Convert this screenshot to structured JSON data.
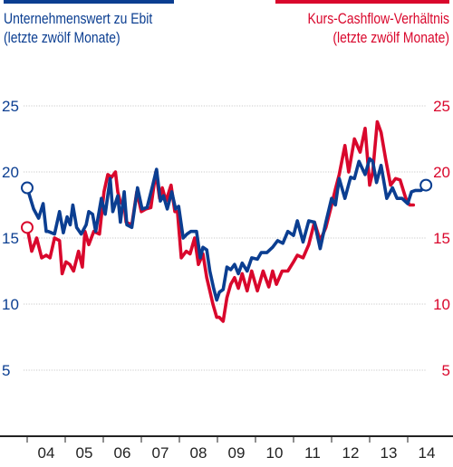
{
  "legend": {
    "left": {
      "line1": "Unternehmenswert zu Ebit",
      "line2": "(letzte zwölf Monate)"
    },
    "right": {
      "line1": "Kurs-Cashflow-Verhältnis",
      "line2": "(letzte zwölf Monate)"
    }
  },
  "colors": {
    "blue": "#0b3e91",
    "red": "#d9072c",
    "grid": "#c9c9c9",
    "axis": "#222222"
  },
  "chart_data": {
    "type": "line",
    "title": "",
    "xlabel": "",
    "ylabel_left": "Unternehmenswert zu Ebit (letzte zwölf Monate)",
    "ylabel_right": "Kurs-Cashflow-Verhältnis (letzte zwölf Monate)",
    "x_tick_labels": [
      "04",
      "05",
      "06",
      "07",
      "08",
      "09",
      "10",
      "11",
      "12",
      "13",
      "14"
    ],
    "y_ticks_left": [
      "5",
      "10",
      "15",
      "20",
      "25"
    ],
    "y_ticks_right": [
      "5",
      "10",
      "15",
      "20",
      "25"
    ],
    "ylim": [
      0,
      27
    ],
    "xlim": [
      2004.0,
      2015.0
    ],
    "grid": true,
    "series": [
      {
        "name": "Unternehmenswert zu Ebit",
        "color": "#0b3e91",
        "x": [
          2004.0,
          2004.17,
          2004.3,
          2004.42,
          2004.5,
          2004.55,
          2004.72,
          2004.85,
          2004.95,
          2005.05,
          2005.13,
          2005.2,
          2005.3,
          2005.42,
          2005.55,
          2005.62,
          2005.72,
          2005.8,
          2005.95,
          2006.05,
          2006.18,
          2006.25,
          2006.38,
          2006.45,
          2006.55,
          2006.62,
          2006.75,
          2006.9,
          2007.02,
          2007.15,
          2007.3,
          2007.4,
          2007.5,
          2007.58,
          2007.68,
          2007.8,
          2007.9,
          2007.98,
          2008.1,
          2008.2,
          2008.3,
          2008.45,
          2008.55,
          2008.62,
          2008.72,
          2008.8,
          2008.9,
          2008.98,
          2009.05,
          2009.15,
          2009.25,
          2009.35,
          2009.45,
          2009.55,
          2009.65,
          2009.78,
          2009.9,
          2010.05,
          2010.15,
          2010.3,
          2010.45,
          2010.58,
          2010.72,
          2010.85,
          2011.0,
          2011.1,
          2011.25,
          2011.4,
          2011.55,
          2011.7,
          2011.85,
          2012.0,
          2012.1,
          2012.2,
          2012.35,
          2012.5,
          2012.6,
          2012.72,
          2012.88,
          2013.0,
          2013.08,
          2013.18,
          2013.3,
          2013.45,
          2013.6,
          2013.72,
          2013.85,
          2014.0,
          2014.1,
          2014.2,
          2014.35,
          2014.48
        ],
        "values": [
          18.8,
          17.2,
          16.5,
          17.6,
          15.5,
          15.5,
          15.3,
          17.0,
          15.4,
          16.6,
          16.0,
          17.5,
          15.8,
          15.3,
          16.0,
          17.0,
          16.8,
          15.5,
          18.0,
          16.8,
          19.5,
          17.0,
          18.2,
          16.2,
          18.5,
          16.0,
          15.8,
          18.8,
          17.2,
          17.3,
          19.0,
          20.2,
          17.8,
          18.2,
          17.2,
          18.5,
          17.2,
          17.4,
          15.0,
          15.3,
          15.5,
          15.5,
          13.5,
          14.3,
          14.1,
          12.5,
          11.2,
          10.3,
          10.9,
          11.1,
          12.8,
          12.6,
          13.0,
          12.3,
          13.1,
          12.5,
          13.5,
          13.4,
          13.9,
          13.9,
          14.3,
          14.8,
          14.6,
          15.5,
          15.2,
          16.3,
          14.7,
          16.3,
          16.2,
          14.2,
          16.2,
          18.0,
          17.5,
          19.5,
          18.0,
          19.6,
          19.5,
          20.8,
          19.8,
          21.0,
          20.8,
          19.2,
          20.5,
          18.0,
          18.8,
          18.0,
          18.0,
          17.6,
          18.5,
          18.6,
          18.6,
          19.0
        ]
      },
      {
        "name": "Kurs-Cashflow-Verhältnis",
        "color": "#d9072c",
        "x": [
          2004.0,
          2004.12,
          2004.25,
          2004.38,
          2004.5,
          2004.6,
          2004.72,
          2004.85,
          2004.92,
          2005.02,
          2005.12,
          2005.22,
          2005.35,
          2005.45,
          2005.52,
          2005.62,
          2005.75,
          2005.9,
          2006.02,
          2006.12,
          2006.22,
          2006.32,
          2006.38,
          2006.45,
          2006.55,
          2006.6,
          2006.75,
          2006.88,
          2007.0,
          2007.12,
          2007.25,
          2007.38,
          2007.48,
          2007.55,
          2007.65,
          2007.78,
          2007.88,
          2007.95,
          2008.05,
          2008.18,
          2008.28,
          2008.4,
          2008.5,
          2008.62,
          2008.72,
          2008.8,
          2008.88,
          2008.98,
          2009.05,
          2009.15,
          2009.25,
          2009.35,
          2009.45,
          2009.55,
          2009.65,
          2009.78,
          2009.9,
          2010.05,
          2010.2,
          2010.35,
          2010.45,
          2010.55,
          2010.7,
          2010.85,
          2011.0,
          2011.1,
          2011.25,
          2011.4,
          2011.55,
          2011.7,
          2011.85,
          2012.0,
          2012.1,
          2012.2,
          2012.35,
          2012.45,
          2012.6,
          2012.75,
          2012.88,
          2013.0,
          2013.08,
          2013.2,
          2013.3,
          2013.42,
          2013.55,
          2013.68,
          2013.8,
          2013.95,
          2014.05,
          2014.15
        ],
        "values": [
          15.8,
          14.0,
          15.0,
          13.5,
          13.7,
          13.5,
          15.0,
          14.8,
          12.3,
          13.2,
          13.0,
          12.5,
          14.0,
          12.8,
          15.5,
          14.5,
          15.5,
          15.3,
          18.5,
          19.8,
          19.6,
          20.0,
          18.5,
          17.7,
          17.5,
          16.2,
          16.0,
          18.5,
          17.0,
          17.2,
          17.3,
          20.0,
          18.0,
          18.8,
          17.8,
          19.0,
          17.0,
          17.0,
          13.5,
          14.0,
          13.8,
          15.0,
          13.0,
          13.8,
          12.0,
          11.0,
          10.0,
          9.0,
          9.0,
          8.7,
          10.5,
          11.5,
          12.0,
          11.2,
          12.3,
          11.0,
          12.5,
          11.0,
          12.5,
          11.3,
          12.5,
          11.5,
          12.5,
          12.5,
          13.2,
          13.7,
          13.5,
          14.5,
          16.2,
          14.8,
          15.8,
          17.5,
          18.7,
          19.8,
          22.0,
          20.0,
          22.5,
          21.5,
          23.3,
          19.0,
          20.0,
          23.8,
          23.0,
          21.0,
          19.0,
          19.5,
          19.4,
          18.0,
          17.5,
          17.5
        ]
      }
    ]
  }
}
